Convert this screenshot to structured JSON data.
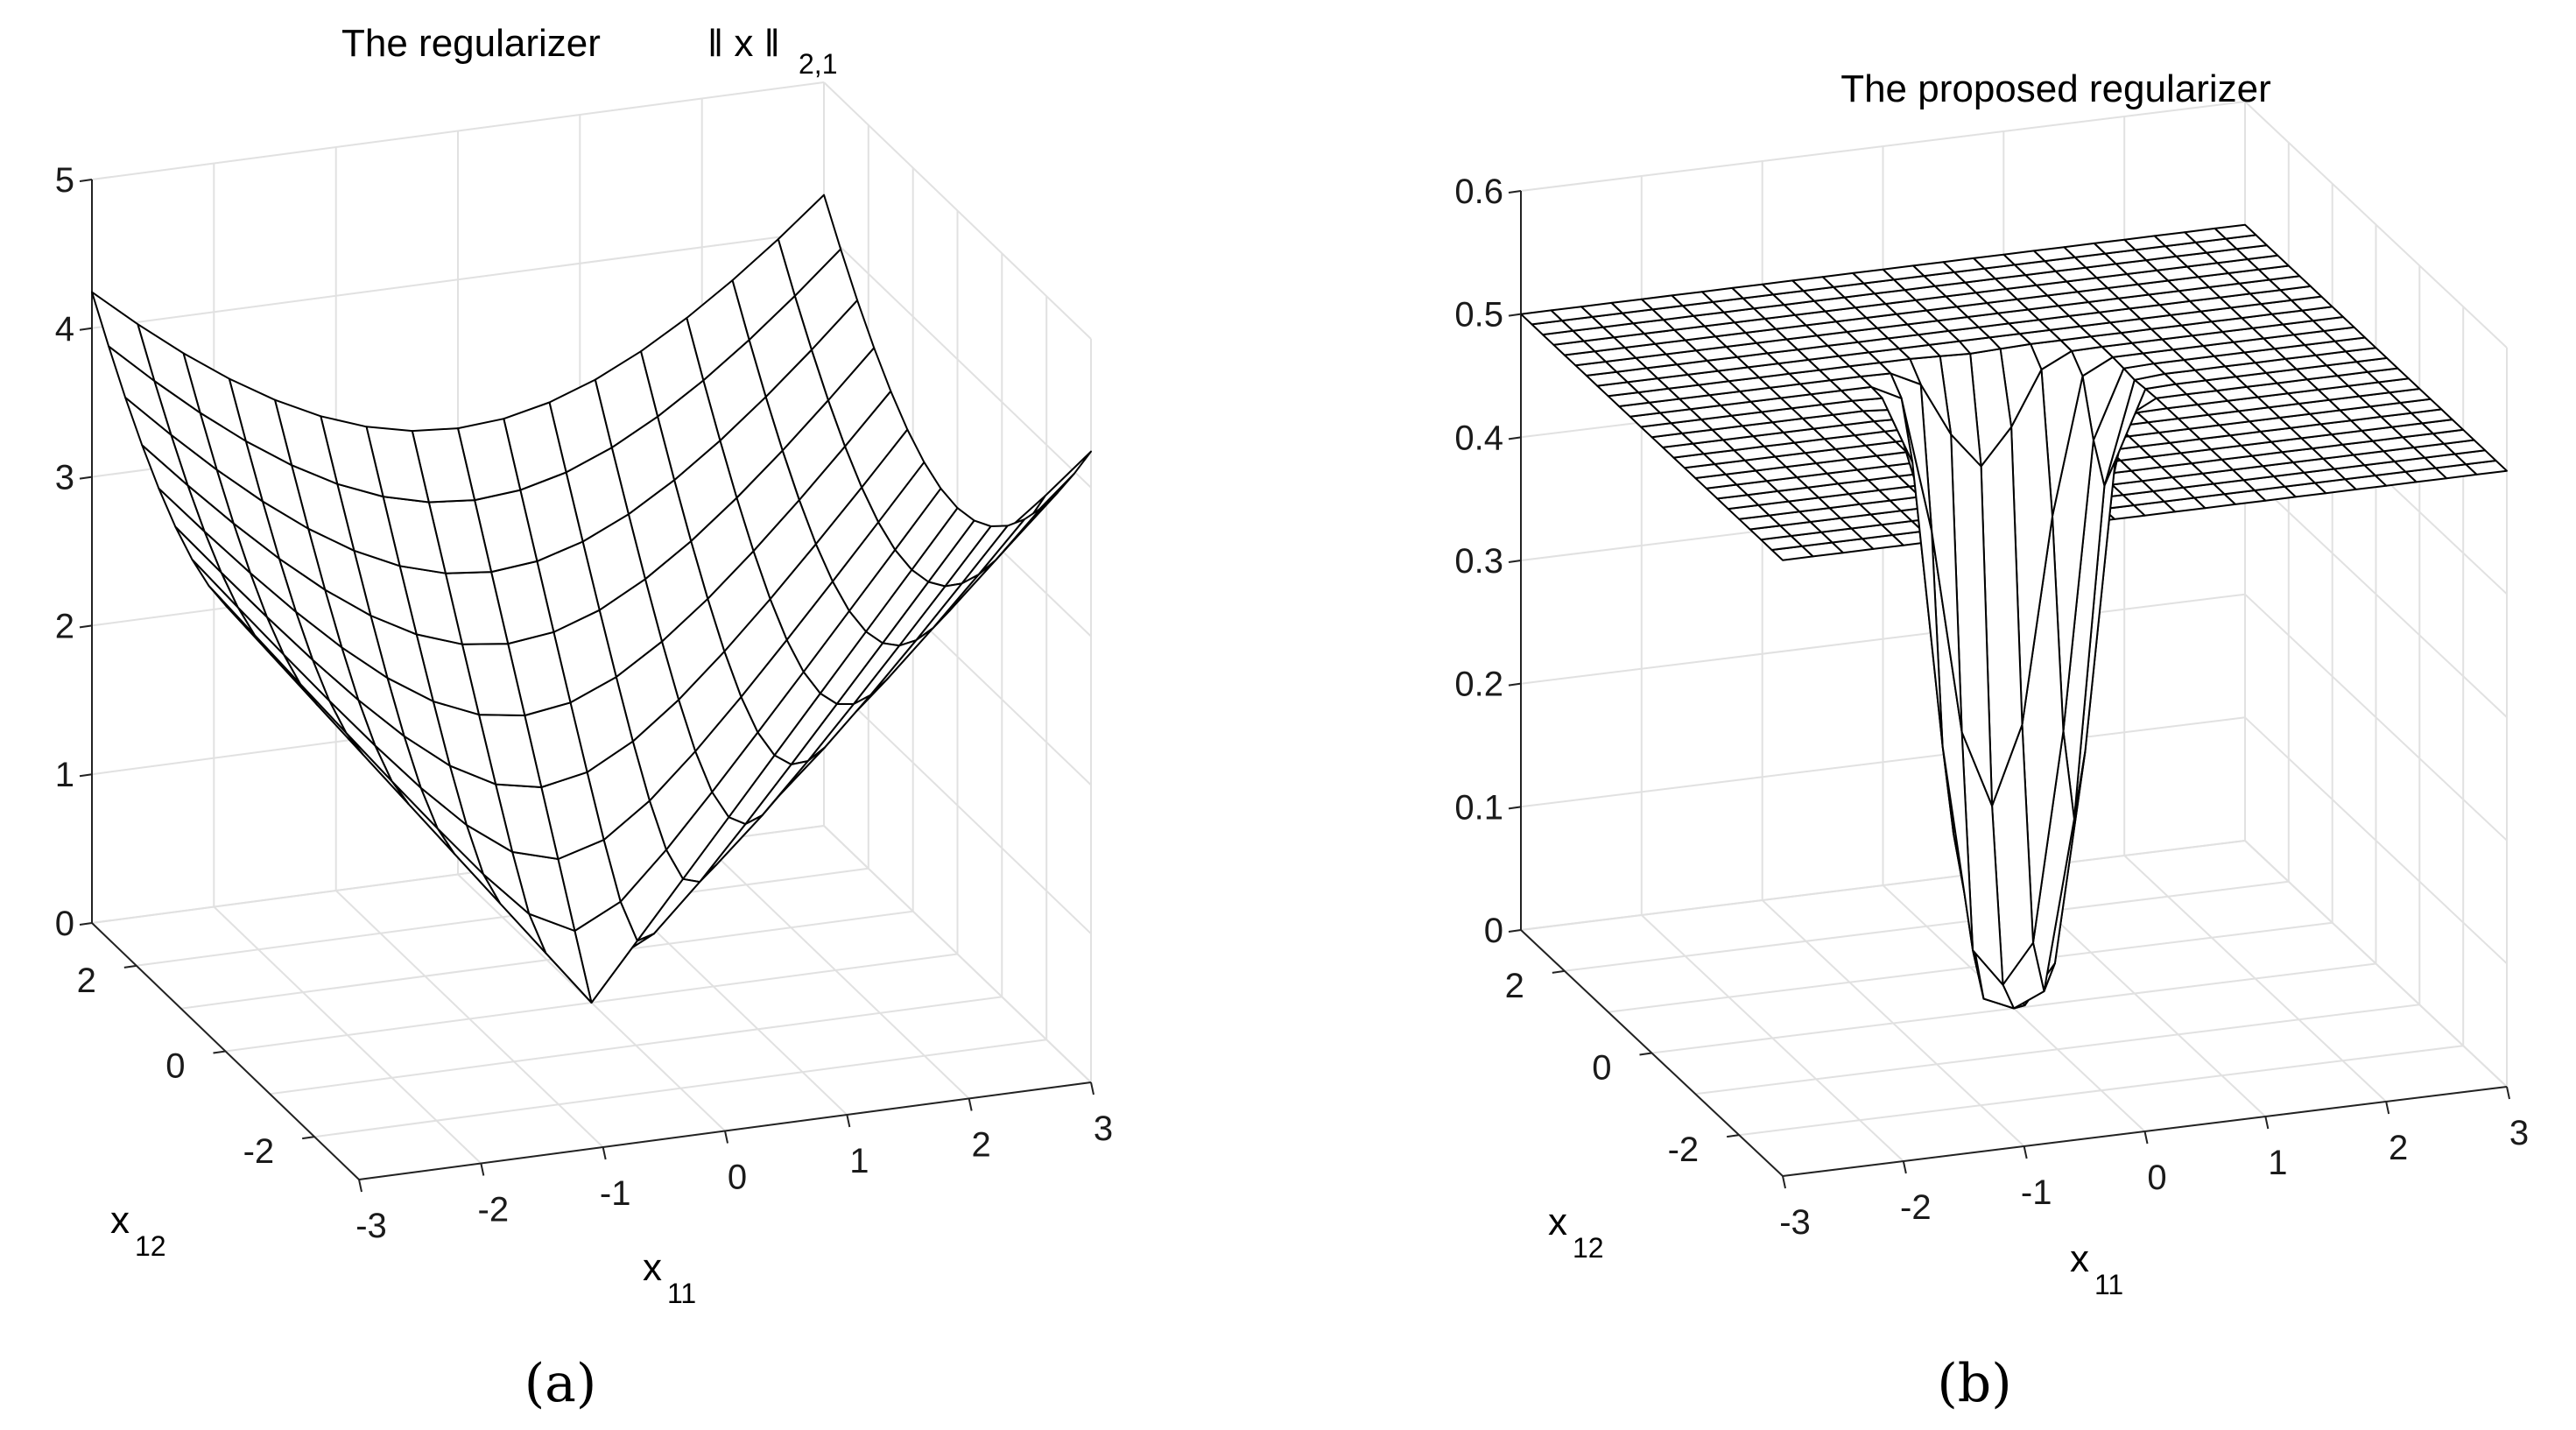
{
  "panels": [
    {
      "title": "The regularizer",
      "title_norm": "‖ x ‖",
      "title_sub": "2,1",
      "xlabel": "x",
      "xlabel_sub": "11",
      "ylabel": "x",
      "ylabel_sub": "12",
      "caption": "(a)"
    },
    {
      "title": "The proposed regularizer",
      "xlabel": "x",
      "xlabel_sub": "11",
      "ylabel": "x",
      "ylabel_sub": "12",
      "caption": "(b)"
    }
  ],
  "chart_data": [
    {
      "type": "surface",
      "title": "The regularizer ‖ x ‖ 2,1",
      "xlabel": "x11",
      "ylabel": "x12",
      "x_ticks": [
        -3,
        -2,
        -1,
        0,
        1,
        2,
        3
      ],
      "y_ticks": [
        -2,
        0,
        2
      ],
      "z_ticks": [
        0,
        1,
        2,
        3,
        4,
        5
      ],
      "xlim": [
        -3,
        3
      ],
      "ylim": [
        -3,
        3
      ],
      "zlim": [
        0,
        5
      ],
      "grid": true,
      "function": "z = sqrt(x11^2 + x12^2)",
      "mesh": {
        "x_range": [
          -3,
          3
        ],
        "y_range": [
          -3,
          3
        ],
        "n": 17
      }
    },
    {
      "type": "surface",
      "title": "The proposed regularizer",
      "xlabel": "x11",
      "ylabel": "x12",
      "x_ticks": [
        -3,
        -2,
        -1,
        0,
        1,
        2,
        3
      ],
      "y_ticks": [
        -2,
        0,
        2
      ],
      "z_ticks": [
        0,
        0.1,
        0.2,
        0.3,
        0.4,
        0.5,
        0.6
      ],
      "xlim": [
        -3,
        3
      ],
      "ylim": [
        -3,
        3
      ],
      "zlim": [
        0,
        0.6
      ],
      "grid": true,
      "function": "z ≈ 0.5 plateau with a narrow well dropping to 0 at the origin",
      "plateau": 0.5,
      "minimum": 0,
      "mesh": {
        "x_range": [
          -3,
          3
        ],
        "y_range": [
          -3,
          3
        ],
        "n": 25
      }
    }
  ]
}
